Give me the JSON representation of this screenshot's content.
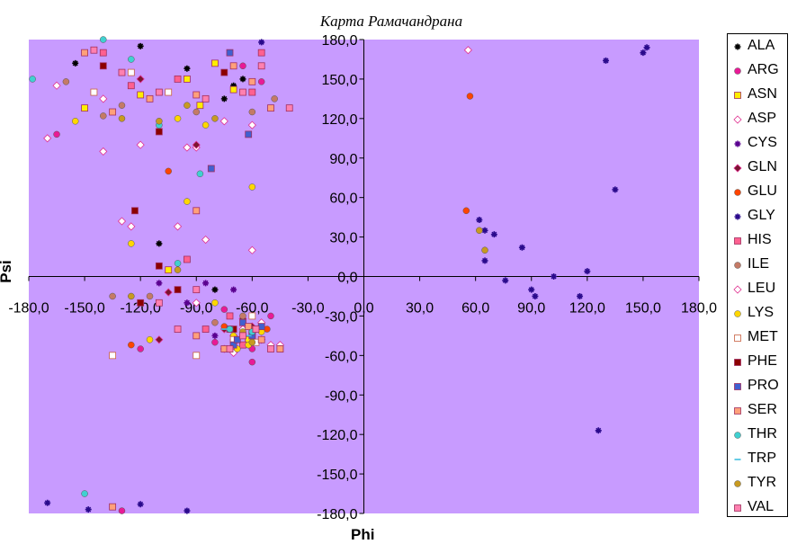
{
  "title": "Карта Рамачандрана",
  "chart_data": {
    "type": "scatter",
    "title": "Карта Рамачандрана",
    "xlabel": "Phi",
    "ylabel": "Psi",
    "xlim": [
      -180,
      180
    ],
    "ylim": [
      -180,
      180
    ],
    "x_ticks": [
      "-180,0",
      "-150,0",
      "-120,0",
      "-90,0",
      "-60,0",
      "-30,0",
      "0,0",
      "30,0",
      "60,0",
      "90,0",
      "120,0",
      "150,0",
      "180,0"
    ],
    "y_ticks": [
      "180,0",
      "150,0",
      "120,0",
      "90,0",
      "60,0",
      "30,0",
      "0,0",
      "-30,0",
      "-60,0",
      "-90,0",
      "-120,0",
      "-150,0",
      "-180,0"
    ],
    "grid": false,
    "legend_position": "right",
    "series": [
      {
        "name": "ALA",
        "color": "#000000",
        "marker": "star",
        "points": [
          [
            -155,
            162
          ],
          [
            -120,
            175
          ],
          [
            -95,
            158
          ],
          [
            -70,
            145
          ],
          [
            -110,
            25
          ],
          [
            -80,
            -10
          ],
          [
            -70,
            -45
          ],
          [
            -60,
            -40
          ],
          [
            -75,
            135
          ],
          [
            -65,
            150
          ]
        ]
      },
      {
        "name": "ARG",
        "color": "#e81a96",
        "marker": "circle",
        "points": [
          [
            -165,
            108
          ],
          [
            -60,
            -65
          ],
          [
            -130,
            -178
          ],
          [
            -55,
            148
          ],
          [
            -50,
            -30
          ],
          [
            -75,
            -25
          ],
          [
            -60,
            -55
          ],
          [
            -80,
            -50
          ],
          [
            -120,
            -55
          ],
          [
            -65,
            160
          ]
        ]
      },
      {
        "name": "ASN",
        "color": "#ffee00",
        "marker": "square",
        "points": [
          [
            -150,
            128
          ],
          [
            -120,
            138
          ],
          [
            -95,
            150
          ],
          [
            -70,
            142
          ],
          [
            -105,
            5
          ],
          [
            -60,
            -42
          ],
          [
            -70,
            -50
          ],
          [
            -62,
            -48
          ],
          [
            -88,
            130
          ],
          [
            -80,
            162
          ]
        ]
      },
      {
        "name": "ASP",
        "color": "#ffffff",
        "marker": "diamond",
        "points": [
          [
            -170,
            105
          ],
          [
            -130,
            42
          ],
          [
            -100,
            38
          ],
          [
            -85,
            28
          ],
          [
            -60,
            20
          ],
          [
            -70,
            -58
          ],
          [
            -50,
            -52
          ],
          [
            56,
            172
          ],
          [
            -140,
            95
          ],
          [
            -90,
            98
          ]
        ]
      },
      {
        "name": "CYS",
        "color": "#5a0090",
        "marker": "star",
        "points": [
          [
            -110,
            -5
          ],
          [
            -70,
            -10
          ],
          [
            -65,
            -35
          ],
          [
            -95,
            -20
          ],
          [
            -125,
            -15
          ],
          [
            -60,
            -30
          ],
          [
            -80,
            -45
          ],
          [
            -85,
            -5
          ]
        ]
      },
      {
        "name": "GLN",
        "color": "#7a1530",
        "marker": "diamond",
        "points": [
          [
            -120,
            150
          ],
          [
            -90,
            100
          ],
          [
            -70,
            -45
          ],
          [
            -65,
            -32
          ],
          [
            -105,
            -12
          ],
          [
            -75,
            -40
          ],
          [
            -60,
            -38
          ],
          [
            -55,
            -48
          ],
          [
            -110,
            -48
          ]
        ]
      },
      {
        "name": "GLU",
        "color": "#ff4400",
        "marker": "circle",
        "points": [
          [
            -105,
            80
          ],
          [
            55,
            50
          ],
          [
            57,
            137
          ],
          [
            -65,
            -45
          ],
          [
            -60,
            -40
          ],
          [
            -70,
            -50
          ],
          [
            -52,
            -40
          ],
          [
            -125,
            -52
          ],
          [
            -75,
            -38
          ],
          [
            -62,
            -52
          ]
        ]
      },
      {
        "name": "GLY",
        "color": "#2a0a8c",
        "marker": "star",
        "points": [
          [
            152,
            174
          ],
          [
            150,
            170
          ],
          [
            130,
            164
          ],
          [
            135,
            66
          ],
          [
            62,
            43
          ],
          [
            65,
            35
          ],
          [
            70,
            32
          ],
          [
            85,
            22
          ],
          [
            120,
            4
          ],
          [
            102,
            0
          ],
          [
            65,
            12
          ],
          [
            76,
            -3
          ],
          [
            90,
            -10
          ],
          [
            92,
            -15
          ],
          [
            116,
            -15
          ],
          [
            126,
            -117
          ],
          [
            -170,
            -172
          ],
          [
            -148,
            -177
          ],
          [
            -120,
            -173
          ],
          [
            -95,
            -178
          ],
          [
            -55,
            178
          ]
        ]
      },
      {
        "name": "HIS",
        "color": "#ff6090",
        "marker": "square",
        "points": [
          [
            -140,
            170
          ],
          [
            -125,
            145
          ],
          [
            -100,
            150
          ],
          [
            -60,
            140
          ],
          [
            -55,
            170
          ],
          [
            -95,
            13
          ],
          [
            -65,
            -52
          ],
          [
            -72,
            -30
          ],
          [
            -85,
            -40
          ]
        ]
      },
      {
        "name": "ILE",
        "color": "#c47a66",
        "marker": "circle",
        "points": [
          [
            -160,
            148
          ],
          [
            -140,
            122
          ],
          [
            -115,
            135
          ],
          [
            -90,
            125
          ],
          [
            -60,
            125
          ],
          [
            -135,
            -15
          ],
          [
            -115,
            -15
          ],
          [
            -80,
            -35
          ],
          [
            -65,
            -30
          ],
          [
            -48,
            135
          ],
          [
            -130,
            130
          ]
        ]
      },
      {
        "name": "LEU",
        "color": "#ffffff",
        "marker": "diamond",
        "points": [
          [
            -165,
            145
          ],
          [
            -140,
            135
          ],
          [
            -120,
            100
          ],
          [
            -95,
            98
          ],
          [
            -75,
            118
          ],
          [
            -60,
            115
          ],
          [
            -125,
            38
          ],
          [
            -90,
            -20
          ],
          [
            -70,
            -45
          ],
          [
            -60,
            -50
          ],
          [
            -55,
            -35
          ],
          [
            -65,
            -40
          ],
          [
            -45,
            -52
          ],
          [
            -75,
            -55
          ]
        ]
      },
      {
        "name": "LYS",
        "color": "#ffd700",
        "marker": "circle",
        "points": [
          [
            -155,
            118
          ],
          [
            -125,
            25
          ],
          [
            -115,
            -48
          ],
          [
            -95,
            57
          ],
          [
            -80,
            -20
          ],
          [
            -70,
            -45
          ],
          [
            -62,
            -52
          ],
          [
            -55,
            -42
          ],
          [
            -68,
            -55
          ],
          [
            -60,
            68
          ],
          [
            -100,
            120
          ],
          [
            -85,
            115
          ]
        ]
      },
      {
        "name": "MET",
        "color": "#ffffff",
        "marker": "square",
        "points": [
          [
            -145,
            140
          ],
          [
            -125,
            155
          ],
          [
            -105,
            140
          ],
          [
            -90,
            -60
          ],
          [
            -70,
            -48
          ],
          [
            -58,
            -50
          ],
          [
            -45,
            -55
          ],
          [
            -135,
            -60
          ],
          [
            -60,
            -30
          ]
        ]
      },
      {
        "name": "PHE",
        "color": "#8b0000",
        "marker": "square",
        "points": [
          [
            -140,
            160
          ],
          [
            -120,
            -20
          ],
          [
            -110,
            8
          ],
          [
            -100,
            -10
          ],
          [
            -70,
            -40
          ],
          [
            -60,
            -45
          ],
          [
            -123,
            50
          ],
          [
            -110,
            110
          ],
          [
            -75,
            155
          ]
        ]
      },
      {
        "name": "PRO",
        "color": "#4060d0",
        "marker": "square",
        "points": [
          [
            -82,
            82
          ],
          [
            -70,
            -52
          ],
          [
            -65,
            -35
          ],
          [
            -60,
            -45
          ],
          [
            -55,
            -38
          ],
          [
            -72,
            -40
          ],
          [
            -68,
            -48
          ],
          [
            -62,
            108
          ],
          [
            -72,
            170
          ]
        ]
      },
      {
        "name": "SER",
        "color": "#ffa07a",
        "marker": "square",
        "points": [
          [
            -150,
            170
          ],
          [
            -135,
            125
          ],
          [
            -115,
            135
          ],
          [
            -90,
            138
          ],
          [
            -70,
            160
          ],
          [
            -60,
            148
          ],
          [
            -50,
            128
          ],
          [
            -90,
            -45
          ],
          [
            -75,
            -55
          ],
          [
            -62,
            -38
          ],
          [
            -55,
            -48
          ],
          [
            -45,
            -55
          ],
          [
            -135,
            -175
          ],
          [
            -90,
            50
          ]
        ]
      },
      {
        "name": "THR",
        "color": "#40d0d0",
        "marker": "circle",
        "points": [
          [
            -178,
            150
          ],
          [
            -140,
            180
          ],
          [
            -125,
            165
          ],
          [
            -110,
            115
          ],
          [
            -88,
            78
          ],
          [
            -72,
            -40
          ],
          [
            -60,
            -42
          ],
          [
            -150,
            -165
          ],
          [
            -100,
            10
          ]
        ]
      },
      {
        "name": "TRP",
        "color": "#40c0e0",
        "marker": "dash",
        "points": [
          [
            -75,
            -40
          ],
          [
            -62,
            -45
          ]
        ]
      },
      {
        "name": "TYR",
        "color": "#c89a20",
        "marker": "circle",
        "points": [
          [
            -130,
            120
          ],
          [
            -110,
            118
          ],
          [
            -95,
            130
          ],
          [
            -80,
            120
          ],
          [
            -65,
            -42
          ],
          [
            -60,
            -50
          ],
          [
            -100,
            5
          ],
          [
            62,
            35
          ],
          [
            65,
            20
          ],
          [
            -125,
            -15
          ]
        ]
      },
      {
        "name": "VAL",
        "color": "#ff80b0",
        "marker": "square",
        "points": [
          [
            -145,
            172
          ],
          [
            -130,
            155
          ],
          [
            -110,
            140
          ],
          [
            -85,
            135
          ],
          [
            -65,
            140
          ],
          [
            -55,
            160
          ],
          [
            -40,
            128
          ],
          [
            -90,
            -10
          ],
          [
            -65,
            -45
          ],
          [
            -58,
            -40
          ],
          [
            -50,
            -55
          ],
          [
            -72,
            -55
          ],
          [
            -110,
            -20
          ],
          [
            -100,
            -40
          ]
        ]
      }
    ]
  }
}
